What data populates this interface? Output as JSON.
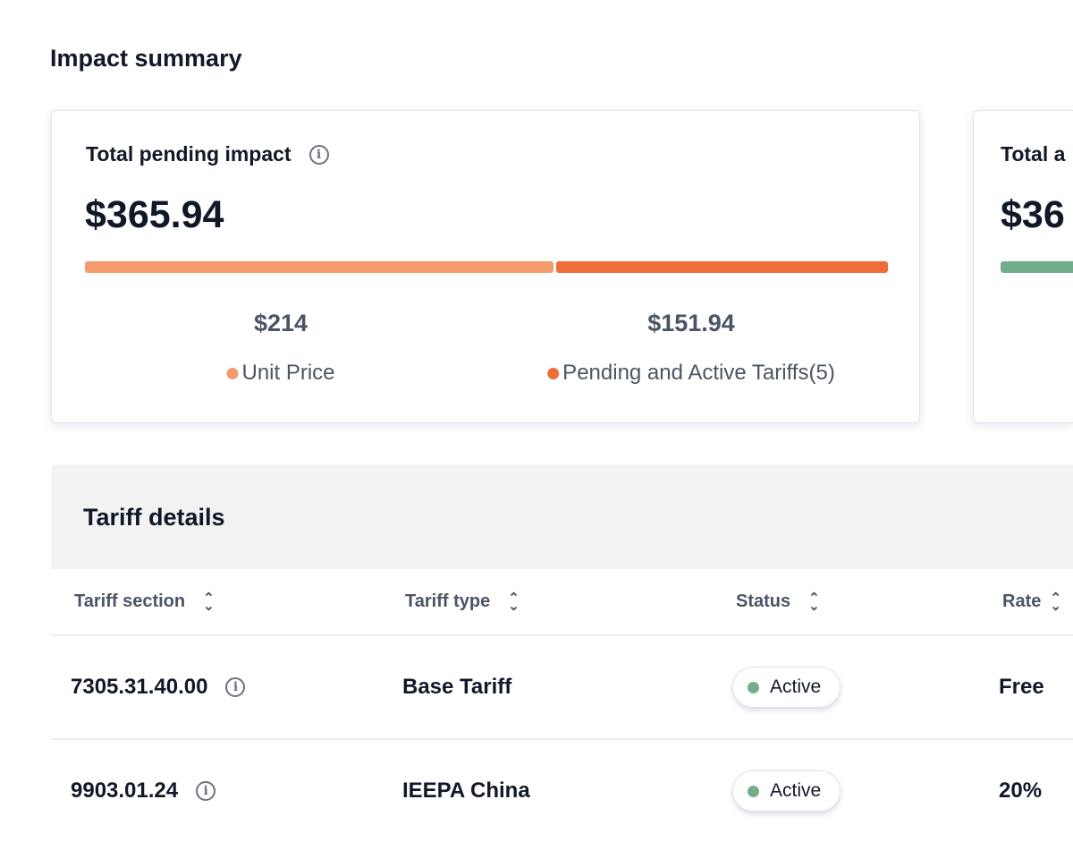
{
  "page": {
    "title": "Impact summary"
  },
  "cards": [
    {
      "label": "Total pending impact",
      "amount": "$365.94",
      "breakdown": [
        {
          "value": "$214",
          "label": "Unit Price",
          "amount": 214,
          "color": "#f39b6d"
        },
        {
          "value": "$151.94",
          "label": "Pending and Active Tariffs(5)",
          "amount": 151.94,
          "color": "#ee6d38"
        }
      ]
    },
    {
      "label": "Total a",
      "amount": "$36",
      "bar_color": "#72ae8c"
    }
  ],
  "tariff_details": {
    "title": "Tariff details",
    "columns": [
      "Tariff section",
      "Tariff type",
      "Status",
      "Rate"
    ],
    "rows": [
      {
        "section": "7305.31.40.00",
        "type": "Base Tariff",
        "status": "Active",
        "rate": "Free"
      },
      {
        "section": "9903.01.24",
        "type": "IEEPA China",
        "status": "Active",
        "rate": "20%"
      }
    ],
    "status_color": "#72ae8c"
  }
}
